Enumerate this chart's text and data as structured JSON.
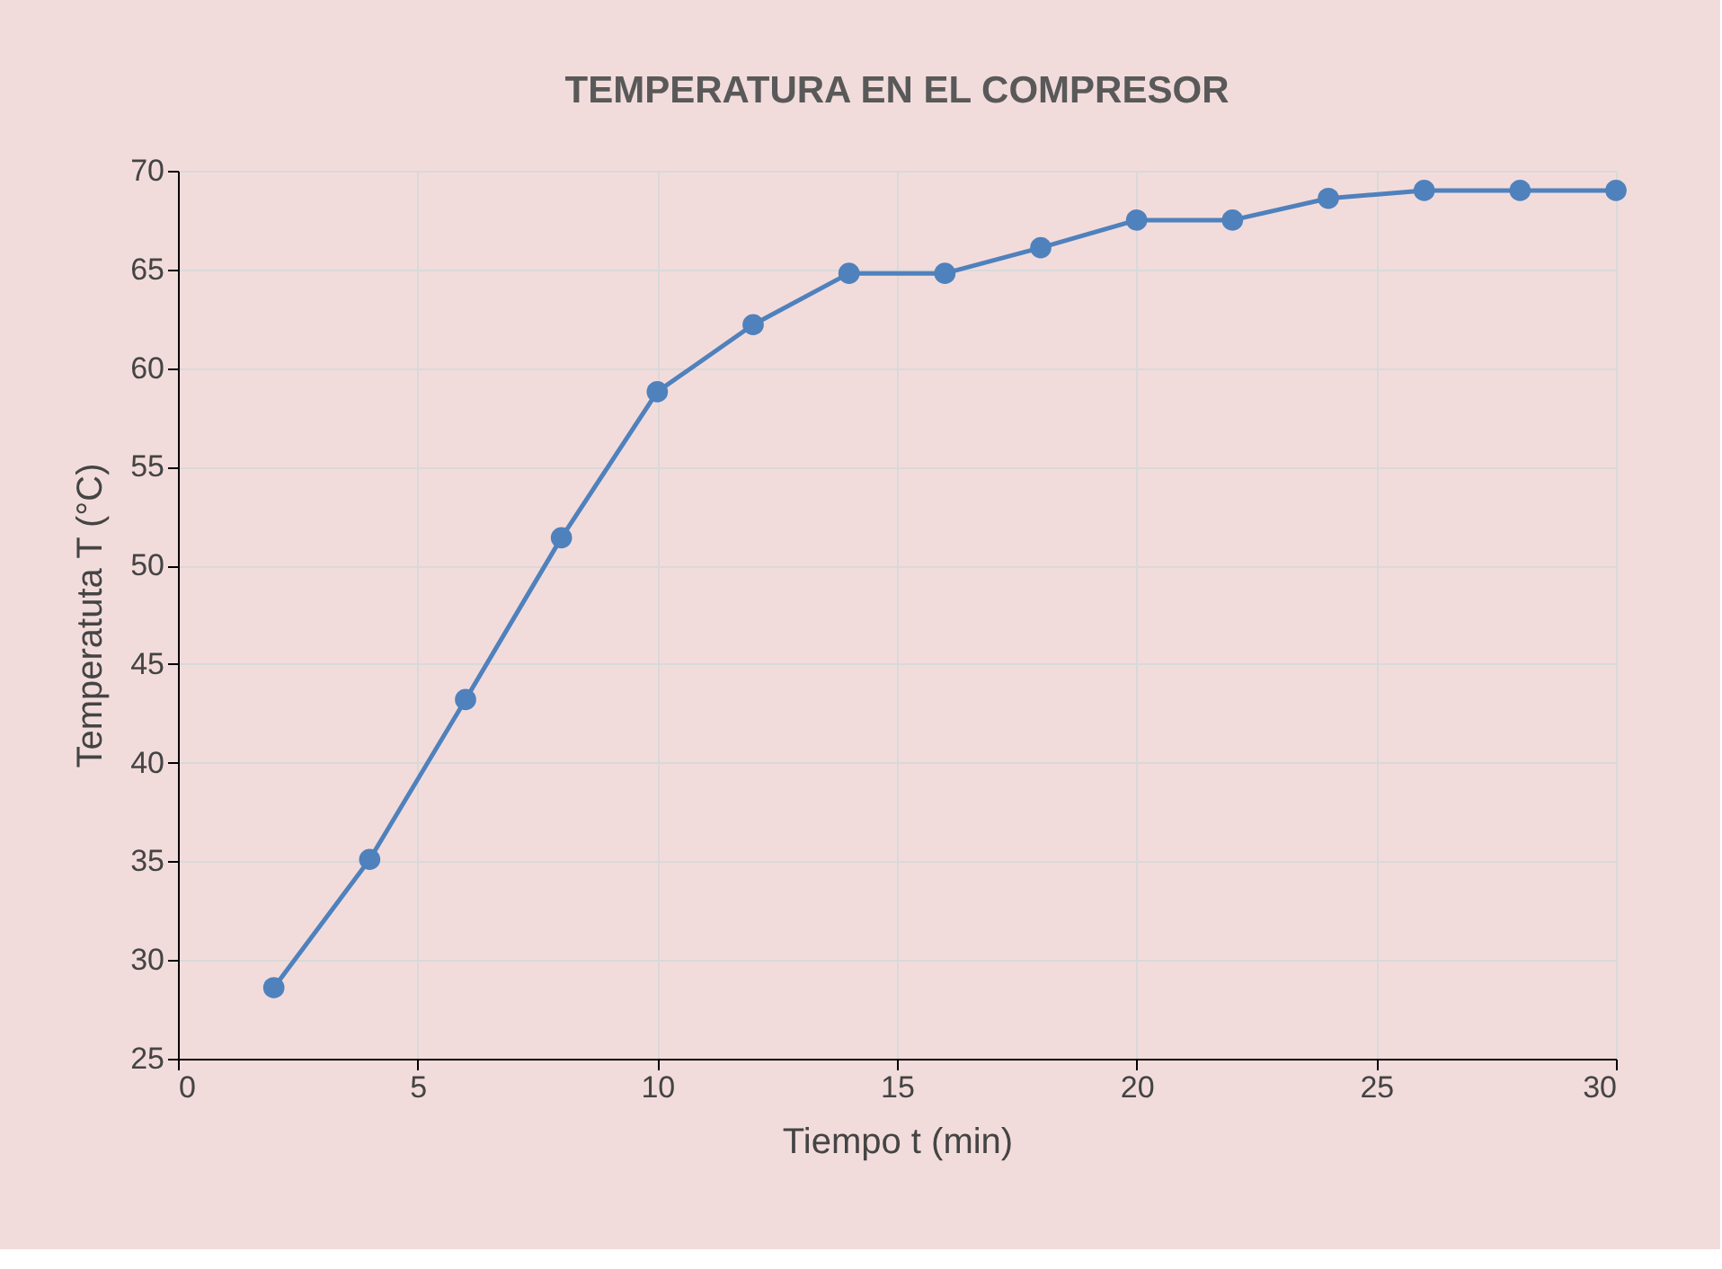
{
  "chart_data": {
    "type": "line",
    "title": "TEMPERATURA EN EL COMPRESOR",
    "xlabel": "Tiempo t (min)",
    "ylabel": "Temperatuta T (°C)",
    "x": [
      2,
      4,
      6,
      8,
      10,
      12,
      14,
      16,
      18,
      20,
      22,
      24,
      26,
      28,
      30
    ],
    "series": [
      {
        "color": "#4f81bd",
        "values": [
          28.6,
          35.1,
          43.2,
          51.4,
          58.8,
          62.2,
          64.8,
          64.8,
          66.1,
          67.5,
          67.5,
          68.6,
          69,
          69,
          69
        ]
      }
    ],
    "xlim": [
      0,
      30
    ],
    "xticks": [
      0,
      5,
      10,
      15,
      20,
      25,
      30
    ],
    "ylim": [
      25,
      70
    ],
    "yticks": [
      25,
      30,
      35,
      40,
      45,
      50,
      55,
      60,
      65,
      70
    ],
    "grid": true,
    "marker": "circle",
    "line_style": "solid"
  }
}
